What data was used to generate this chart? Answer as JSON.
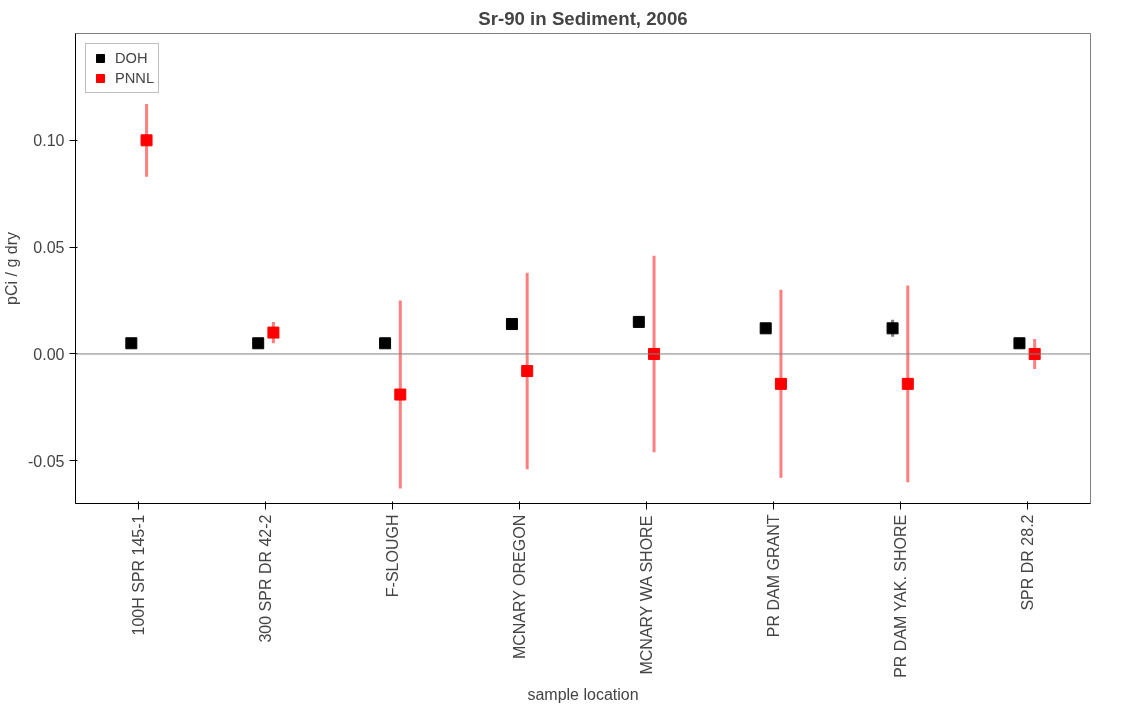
{
  "chart_data": {
    "type": "scatter",
    "title": "Sr-90 in Sediment, 2006",
    "xlabel": "sample location",
    "ylabel": "pCi / g dry",
    "categories": [
      "100H SPR 145-1",
      "300 SPR DR 42-2",
      "F-SLOUGH",
      "MCNARY OREGON",
      "MCNARY WA SHORE",
      "PR DAM GRANT",
      "PR DAM YAK. SHORE",
      "SPR DR 28.2"
    ],
    "series": [
      {
        "name": "DOH",
        "color": "#000000",
        "values": [
          0.005,
          0.005,
          0.005,
          0.014,
          0.015,
          0.012,
          0.012,
          0.005
        ],
        "errors": [
          0.002,
          0.002,
          0.002,
          0.002,
          0.002,
          0.002,
          0.004,
          0.002
        ]
      },
      {
        "name": "PNNL",
        "color": "#ff0000",
        "values": [
          0.1,
          0.01,
          -0.019,
          -0.008,
          0.0,
          -0.014,
          -0.014,
          0.0
        ],
        "errors": [
          0.017,
          0.005,
          0.044,
          0.046,
          0.046,
          0.044,
          0.046,
          0.007
        ]
      }
    ],
    "ylim": [
      -0.07,
      0.15
    ],
    "yticks": [
      {
        "value": -0.05,
        "label": "-0.05"
      },
      {
        "value": 0.0,
        "label": "0.00"
      },
      {
        "value": 0.05,
        "label": "0.05"
      },
      {
        "value": 0.1,
        "label": "0.10"
      }
    ],
    "ref_lines": [
      {
        "axis": "y",
        "value": 0.0,
        "color": "#808080"
      }
    ],
    "marker": "square",
    "legend": "top left",
    "grid": false
  }
}
